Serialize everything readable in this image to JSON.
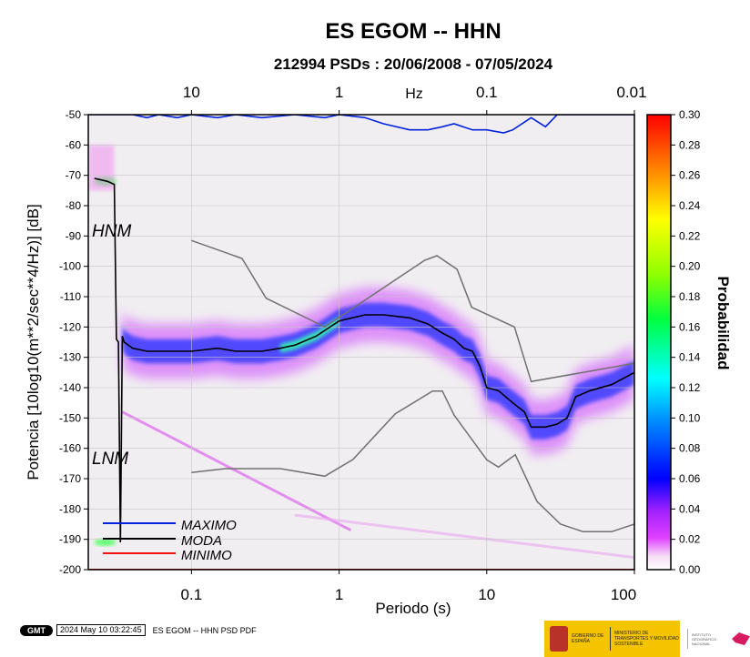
{
  "chart_data": {
    "type": "heatmap",
    "title": "ES EGOM -- HHN",
    "subtitle": "212994 PSDs : 20/06/2008 - 07/05/2024",
    "xlabel": "Periodo (s)",
    "ylabel": "Potencia [10log10(m**2/sec**4/Hz)] [dB]",
    "x_scale": "log",
    "xlim": [
      0.02,
      100
    ],
    "ylim": [
      -200,
      -50
    ],
    "x_ticks": [
      "0.1",
      "1",
      "10",
      "100"
    ],
    "y_ticks": [
      "-50",
      "-60",
      "-70",
      "-80",
      "-90",
      "-100",
      "-110",
      "-120",
      "-130",
      "-140",
      "-150",
      "-160",
      "-170",
      "-180",
      "-190",
      "-200"
    ],
    "top_axis": {
      "label": "Hz",
      "ticks": [
        "10",
        "1",
        "0.1",
        "0.01"
      ]
    },
    "colorbar": {
      "label": "Probabilidad",
      "range": [
        0,
        0.3
      ],
      "ticks": [
        "0.00",
        "0.02",
        "0.04",
        "0.06",
        "0.08",
        "0.10",
        "0.12",
        "0.14",
        "0.16",
        "0.18",
        "0.20",
        "0.22",
        "0.24",
        "0.26",
        "0.28",
        "0.30"
      ]
    },
    "noise_models": {
      "high": "HNM",
      "low": "LNM"
    },
    "legend": [
      "MAXIMO",
      "MODA",
      "MINIMO"
    ],
    "legend_placement": "bottom-left",
    "series": [
      {
        "name": "MAXIMO",
        "color": "#0022dd",
        "points": [
          [
            0.02,
            -50
          ],
          [
            0.04,
            -50
          ],
          [
            0.05,
            -51
          ],
          [
            0.06,
            -50
          ],
          [
            0.08,
            -51
          ],
          [
            0.1,
            -50
          ],
          [
            0.15,
            -51
          ],
          [
            0.2,
            -50
          ],
          [
            0.3,
            -51
          ],
          [
            0.5,
            -50
          ],
          [
            0.8,
            -51
          ],
          [
            1,
            -50
          ],
          [
            1.5,
            -51
          ],
          [
            2,
            -53
          ],
          [
            3,
            -55
          ],
          [
            4,
            -55
          ],
          [
            5,
            -54
          ],
          [
            6,
            -53
          ],
          [
            8,
            -55
          ],
          [
            10,
            -55
          ],
          [
            13,
            -56
          ],
          [
            15,
            -55
          ],
          [
            20,
            -51
          ],
          [
            25,
            -54
          ],
          [
            30,
            -50
          ],
          [
            50,
            -50
          ],
          [
            100,
            -50
          ]
        ]
      },
      {
        "name": "MODA",
        "color": "#000000",
        "points": [
          [
            0.022,
            -71
          ],
          [
            0.027,
            -72
          ],
          [
            0.03,
            -73
          ],
          [
            0.031,
            -124
          ],
          [
            0.032,
            -125
          ],
          [
            0.033,
            -191
          ],
          [
            0.034,
            -123
          ],
          [
            0.035,
            -125
          ],
          [
            0.04,
            -127
          ],
          [
            0.05,
            -128
          ],
          [
            0.07,
            -128
          ],
          [
            0.1,
            -128
          ],
          [
            0.15,
            -127
          ],
          [
            0.2,
            -128
          ],
          [
            0.3,
            -128
          ],
          [
            0.4,
            -127
          ],
          [
            0.5,
            -126
          ],
          [
            0.7,
            -123
          ],
          [
            1,
            -118
          ],
          [
            1.5,
            -116
          ],
          [
            2,
            -116
          ],
          [
            3,
            -117
          ],
          [
            4,
            -119
          ],
          [
            5,
            -122
          ],
          [
            6,
            -124
          ],
          [
            7,
            -127
          ],
          [
            8,
            -128
          ],
          [
            9,
            -133
          ],
          [
            10,
            -140
          ],
          [
            12,
            -141
          ],
          [
            15,
            -145
          ],
          [
            18,
            -148
          ],
          [
            20,
            -153
          ],
          [
            25,
            -153
          ],
          [
            30,
            -152
          ],
          [
            35,
            -150
          ],
          [
            40,
            -143
          ],
          [
            50,
            -141
          ],
          [
            70,
            -139
          ],
          [
            100,
            -135
          ]
        ]
      },
      {
        "name": "MINIMO",
        "color": "#ff0000",
        "points": [
          [
            0.02,
            -200
          ],
          [
            100,
            -200
          ]
        ]
      },
      {
        "name": "HNM",
        "color": "#707070",
        "points": [
          [
            0.1,
            -91.5
          ],
          [
            0.22,
            -97.4
          ],
          [
            0.32,
            -110.5
          ],
          [
            0.8,
            -120
          ],
          [
            3.8,
            -98
          ],
          [
            4.6,
            -96.5
          ],
          [
            6.3,
            -101
          ],
          [
            7.9,
            -113.5
          ],
          [
            15.4,
            -120
          ],
          [
            20,
            -138
          ],
          [
            100,
            -132
          ]
        ]
      },
      {
        "name": "LNM",
        "color": "#707070",
        "points": [
          [
            0.1,
            -168
          ],
          [
            0.17,
            -166.7
          ],
          [
            0.4,
            -166.7
          ],
          [
            0.8,
            -169.2
          ],
          [
            1.24,
            -163.7
          ],
          [
            2.4,
            -148.6
          ],
          [
            4.3,
            -141.1
          ],
          [
            5,
            -141.1
          ],
          [
            6,
            -149
          ],
          [
            10,
            -163.8
          ],
          [
            12,
            -166.2
          ],
          [
            15.6,
            -162.1
          ],
          [
            21.9,
            -177.5
          ],
          [
            31.6,
            -185
          ],
          [
            45,
            -187.5
          ],
          [
            70,
            -187.5
          ],
          [
            100,
            -185
          ]
        ]
      }
    ]
  },
  "stamp": {
    "logo": "GMT",
    "date": "2024 May 10 03:22:45",
    "caption": "ES EGOM -- HHN PSD PDF"
  },
  "footer": {
    "ministry_left": "GOBIERNO DE ESPAÑA",
    "ministry_right": "MINISTERIO DE TRANSPORTES Y MOVILIDAD SOSTENIBLE",
    "institute": "INSTITUTO GEOGRÁFICO NACIONAL"
  }
}
